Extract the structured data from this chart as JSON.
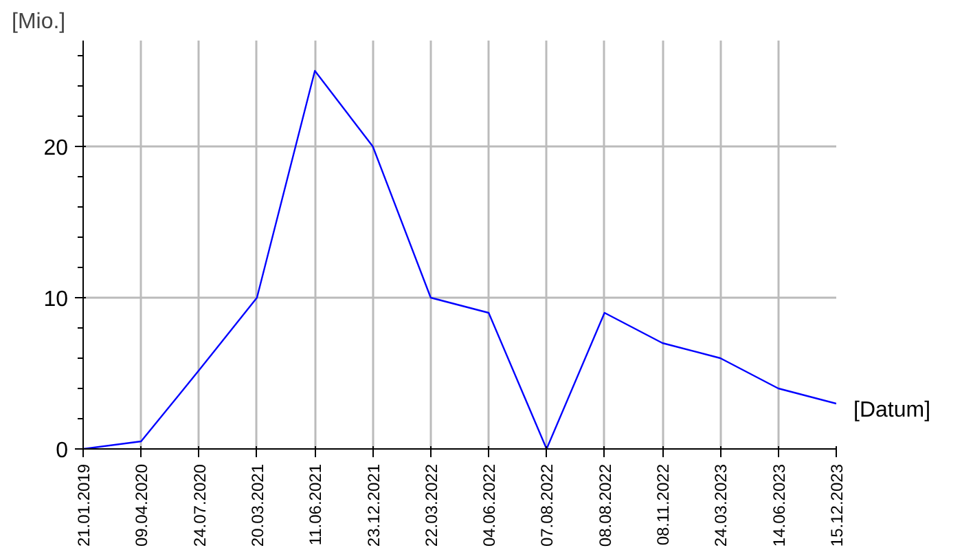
{
  "chart_data": {
    "type": "line",
    "xlabel": "[Datum]",
    "ylabel": "[Mio.]",
    "categories": [
      "21.01.2019",
      "09.04.2020",
      "24.07.2020",
      "20.03.2021",
      "11.06.2021",
      "23.12.2021",
      "22.03.2022",
      "04.06.2022",
      "07.08.2022",
      "08.08.2022",
      "08.11.2022",
      "24.03.2023",
      "14.06.2023",
      "15.12.2023"
    ],
    "series": [
      {
        "color": "#0000ff",
        "values": [
          0,
          0.5,
          5.2,
          10,
          25,
          20,
          10,
          9,
          0,
          9,
          7,
          6,
          4,
          3
        ]
      }
    ],
    "ylim": [
      0,
      27
    ],
    "yticks": [
      0,
      10,
      20
    ],
    "grid": true,
    "marker": "none",
    "line_style": "solid"
  }
}
